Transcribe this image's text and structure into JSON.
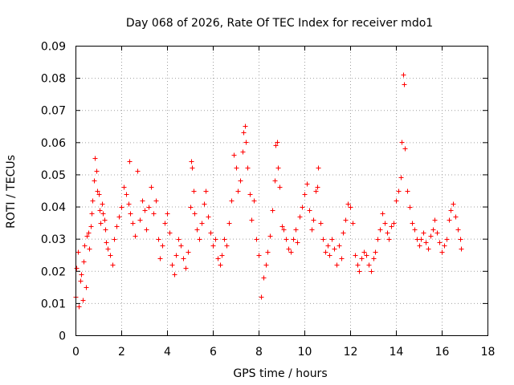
{
  "chart_data": {
    "type": "scatter",
    "title": "Day 068 of 2026, Rate Of TEC Index for receiver mdo1",
    "xlabel": "GPS time / hours",
    "ylabel": "ROTI / TECUs",
    "xlim": [
      0,
      18
    ],
    "ylim": [
      0,
      0.09
    ],
    "x_ticks": [
      "0",
      "2",
      "4",
      "6",
      "8",
      "10",
      "12",
      "14",
      "16",
      "18"
    ],
    "y_ticks": [
      "0",
      "0.01",
      "0.02",
      "0.03",
      "0.04",
      "0.05",
      "0.06",
      "0.07",
      "0.08",
      "0.09"
    ],
    "grid": true,
    "marker": "+",
    "color": "#ff0000",
    "series": [
      {
        "name": "ROTI",
        "points": [
          [
            0.0,
            0.012
          ],
          [
            0.05,
            0.021
          ],
          [
            0.1,
            0.026
          ],
          [
            0.15,
            0.009
          ],
          [
            0.2,
            0.017
          ],
          [
            0.25,
            0.019
          ],
          [
            0.3,
            0.011
          ],
          [
            0.35,
            0.023
          ],
          [
            0.4,
            0.028
          ],
          [
            0.45,
            0.015
          ],
          [
            0.5,
            0.031
          ],
          [
            0.55,
            0.032
          ],
          [
            0.6,
            0.027
          ],
          [
            0.65,
            0.034
          ],
          [
            0.7,
            0.038
          ],
          [
            0.75,
            0.042
          ],
          [
            0.8,
            0.048
          ],
          [
            0.85,
            0.055
          ],
          [
            0.9,
            0.051
          ],
          [
            0.95,
            0.045
          ],
          [
            1.0,
            0.044
          ],
          [
            1.05,
            0.039
          ],
          [
            1.1,
            0.035
          ],
          [
            1.15,
            0.041
          ],
          [
            1.2,
            0.038
          ],
          [
            1.25,
            0.036
          ],
          [
            1.3,
            0.033
          ],
          [
            1.35,
            0.029
          ],
          [
            1.4,
            0.027
          ],
          [
            1.5,
            0.025
          ],
          [
            1.6,
            0.022
          ],
          [
            1.7,
            0.03
          ],
          [
            1.8,
            0.034
          ],
          [
            1.9,
            0.037
          ],
          [
            2.0,
            0.04
          ],
          [
            2.1,
            0.046
          ],
          [
            2.2,
            0.044
          ],
          [
            2.3,
            0.041
          ],
          [
            2.35,
            0.054
          ],
          [
            2.4,
            0.038
          ],
          [
            2.5,
            0.035
          ],
          [
            2.6,
            0.031
          ],
          [
            2.7,
            0.051
          ],
          [
            2.8,
            0.036
          ],
          [
            2.9,
            0.042
          ],
          [
            3.0,
            0.039
          ],
          [
            3.1,
            0.033
          ],
          [
            3.2,
            0.04
          ],
          [
            3.3,
            0.046
          ],
          [
            3.4,
            0.038
          ],
          [
            3.5,
            0.042
          ],
          [
            3.6,
            0.03
          ],
          [
            3.7,
            0.024
          ],
          [
            3.8,
            0.028
          ],
          [
            3.9,
            0.035
          ],
          [
            4.0,
            0.038
          ],
          [
            4.1,
            0.032
          ],
          [
            4.2,
            0.022
          ],
          [
            4.3,
            0.019
          ],
          [
            4.4,
            0.025
          ],
          [
            4.5,
            0.03
          ],
          [
            4.6,
            0.028
          ],
          [
            4.7,
            0.024
          ],
          [
            4.8,
            0.021
          ],
          [
            4.9,
            0.026
          ],
          [
            5.0,
            0.04
          ],
          [
            5.05,
            0.054
          ],
          [
            5.1,
            0.052
          ],
          [
            5.15,
            0.045
          ],
          [
            5.2,
            0.038
          ],
          [
            5.3,
            0.033
          ],
          [
            5.4,
            0.03
          ],
          [
            5.5,
            0.035
          ],
          [
            5.6,
            0.041
          ],
          [
            5.7,
            0.045
          ],
          [
            5.8,
            0.037
          ],
          [
            5.9,
            0.032
          ],
          [
            6.0,
            0.028
          ],
          [
            6.1,
            0.03
          ],
          [
            6.2,
            0.024
          ],
          [
            6.3,
            0.022
          ],
          [
            6.4,
            0.025
          ],
          [
            6.5,
            0.03
          ],
          [
            6.6,
            0.028
          ],
          [
            6.7,
            0.035
          ],
          [
            6.8,
            0.042
          ],
          [
            6.9,
            0.056
          ],
          [
            7.0,
            0.052
          ],
          [
            7.1,
            0.045
          ],
          [
            7.2,
            0.048
          ],
          [
            7.3,
            0.057
          ],
          [
            7.35,
            0.063
          ],
          [
            7.4,
            0.065
          ],
          [
            7.45,
            0.06
          ],
          [
            7.5,
            0.052
          ],
          [
            7.6,
            0.044
          ],
          [
            7.7,
            0.036
          ],
          [
            7.8,
            0.042
          ],
          [
            7.9,
            0.03
          ],
          [
            8.0,
            0.025
          ],
          [
            8.1,
            0.012
          ],
          [
            8.2,
            0.018
          ],
          [
            8.3,
            0.022
          ],
          [
            8.4,
            0.026
          ],
          [
            8.5,
            0.031
          ],
          [
            8.6,
            0.039
          ],
          [
            8.7,
            0.048
          ],
          [
            8.75,
            0.059
          ],
          [
            8.8,
            0.06
          ],
          [
            8.85,
            0.052
          ],
          [
            8.9,
            0.046
          ],
          [
            9.0,
            0.034
          ],
          [
            9.1,
            0.033
          ],
          [
            9.2,
            0.03
          ],
          [
            9.3,
            0.027
          ],
          [
            9.4,
            0.026
          ],
          [
            9.5,
            0.03
          ],
          [
            9.6,
            0.033
          ],
          [
            9.7,
            0.029
          ],
          [
            9.8,
            0.037
          ],
          [
            9.9,
            0.04
          ],
          [
            10.0,
            0.044
          ],
          [
            10.1,
            0.047
          ],
          [
            10.2,
            0.039
          ],
          [
            10.3,
            0.033
          ],
          [
            10.4,
            0.036
          ],
          [
            10.5,
            0.045
          ],
          [
            10.55,
            0.046
          ],
          [
            10.6,
            0.052
          ],
          [
            10.7,
            0.035
          ],
          [
            10.8,
            0.03
          ],
          [
            10.9,
            0.026
          ],
          [
            11.0,
            0.028
          ],
          [
            11.1,
            0.025
          ],
          [
            11.2,
            0.03
          ],
          [
            11.3,
            0.027
          ],
          [
            11.4,
            0.022
          ],
          [
            11.5,
            0.028
          ],
          [
            11.6,
            0.024
          ],
          [
            11.7,
            0.032
          ],
          [
            11.8,
            0.036
          ],
          [
            11.9,
            0.041
          ],
          [
            12.0,
            0.04
          ],
          [
            12.1,
            0.035
          ],
          [
            12.2,
            0.025
          ],
          [
            12.3,
            0.022
          ],
          [
            12.4,
            0.02
          ],
          [
            12.5,
            0.024
          ],
          [
            12.6,
            0.026
          ],
          [
            12.7,
            0.025
          ],
          [
            12.8,
            0.022
          ],
          [
            12.9,
            0.02
          ],
          [
            13.0,
            0.024
          ],
          [
            13.1,
            0.026
          ],
          [
            13.2,
            0.03
          ],
          [
            13.3,
            0.033
          ],
          [
            13.4,
            0.038
          ],
          [
            13.5,
            0.035
          ],
          [
            13.6,
            0.032
          ],
          [
            13.7,
            0.03
          ],
          [
            13.8,
            0.034
          ],
          [
            13.9,
            0.035
          ],
          [
            14.0,
            0.042
          ],
          [
            14.1,
            0.045
          ],
          [
            14.2,
            0.049
          ],
          [
            14.25,
            0.06
          ],
          [
            14.3,
            0.081
          ],
          [
            14.35,
            0.078
          ],
          [
            14.4,
            0.058
          ],
          [
            14.5,
            0.045
          ],
          [
            14.6,
            0.04
          ],
          [
            14.7,
            0.035
          ],
          [
            14.8,
            0.033
          ],
          [
            14.9,
            0.03
          ],
          [
            15.0,
            0.028
          ],
          [
            15.1,
            0.03
          ],
          [
            15.2,
            0.032
          ],
          [
            15.3,
            0.029
          ],
          [
            15.4,
            0.027
          ],
          [
            15.5,
            0.031
          ],
          [
            15.6,
            0.033
          ],
          [
            15.7,
            0.036
          ],
          [
            15.8,
            0.032
          ],
          [
            15.9,
            0.029
          ],
          [
            16.0,
            0.026
          ],
          [
            16.1,
            0.028
          ],
          [
            16.2,
            0.03
          ],
          [
            16.3,
            0.036
          ],
          [
            16.4,
            0.039
          ],
          [
            16.5,
            0.041
          ],
          [
            16.6,
            0.037
          ],
          [
            16.7,
            0.033
          ],
          [
            16.8,
            0.03
          ],
          [
            16.85,
            0.027
          ]
        ]
      }
    ]
  }
}
